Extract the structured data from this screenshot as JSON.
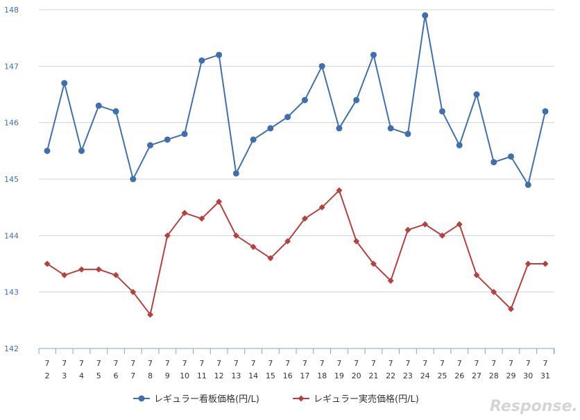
{
  "chart_data": {
    "type": "line",
    "categories": [
      [
        "7",
        "2"
      ],
      [
        "7",
        "3"
      ],
      [
        "7",
        "4"
      ],
      [
        "7",
        "5"
      ],
      [
        "7",
        "6"
      ],
      [
        "7",
        "7"
      ],
      [
        "7",
        "8"
      ],
      [
        "7",
        "9"
      ],
      [
        "7",
        "10"
      ],
      [
        "7",
        "11"
      ],
      [
        "7",
        "12"
      ],
      [
        "7",
        "13"
      ],
      [
        "7",
        "14"
      ],
      [
        "7",
        "15"
      ],
      [
        "7",
        "16"
      ],
      [
        "7",
        "17"
      ],
      [
        "7",
        "18"
      ],
      [
        "7",
        "19"
      ],
      [
        "7",
        "20"
      ],
      [
        "7",
        "21"
      ],
      [
        "7",
        "22"
      ],
      [
        "7",
        "23"
      ],
      [
        "7",
        "24"
      ],
      [
        "7",
        "25"
      ],
      [
        "7",
        "26"
      ],
      [
        "7",
        "27"
      ],
      [
        "7",
        "28"
      ],
      [
        "7",
        "29"
      ],
      [
        "7",
        "30"
      ],
      [
        "7",
        "31"
      ]
    ],
    "ylim": [
      142,
      148
    ],
    "yticks": [
      142,
      143,
      144,
      145,
      146,
      147,
      148
    ],
    "grid": true,
    "legend_position": "bottom",
    "series": [
      {
        "name": "レギュラー看板価格(円/L)",
        "color": "#3f6fae",
        "marker": "circle",
        "values": [
          145.5,
          146.7,
          145.5,
          146.3,
          146.2,
          145.0,
          145.6,
          145.7,
          145.8,
          147.1,
          147.2,
          145.1,
          145.7,
          145.9,
          146.1,
          146.4,
          147.0,
          145.9,
          146.4,
          147.2,
          145.9,
          145.8,
          147.9,
          146.2,
          145.6,
          146.5,
          145.3,
          145.4,
          144.9,
          146.2
        ]
      },
      {
        "name": "レギュラー実売価格(円/L)",
        "color": "#b5403d",
        "marker": "diamond",
        "values": [
          143.5,
          143.3,
          143.4,
          143.4,
          143.3,
          143.0,
          142.6,
          144.0,
          144.4,
          144.3,
          144.6,
          144.0,
          143.8,
          143.6,
          143.9,
          144.3,
          144.5,
          144.8,
          143.9,
          143.5,
          143.2,
          144.1,
          144.2,
          144.0,
          144.2,
          143.3,
          143.0,
          142.7,
          143.5,
          143.5
        ]
      }
    ]
  },
  "watermark": "Response."
}
